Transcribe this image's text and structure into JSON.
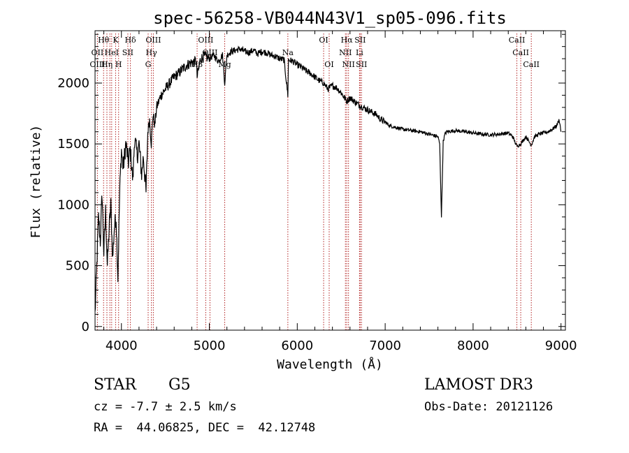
{
  "chart_data": {
    "type": "line",
    "title": "spec-56258-VB044N43V1_sp05-096.fits",
    "xlabel": "Wavelength (Å)",
    "ylabel": "Flux (relative)",
    "xlim": [
      3700,
      9050
    ],
    "ylim": [
      -30,
      2430
    ],
    "xticks": [
      4000,
      5000,
      6000,
      7000,
      8000,
      9000
    ],
    "yticks": [
      0,
      500,
      1000,
      1500,
      2000
    ],
    "grid": false,
    "line_color": "#000000",
    "marker_color": "#b22222",
    "series": [
      {
        "x": [
          3700,
          3720,
          3740,
          3760,
          3780,
          3800,
          3820,
          3840,
          3860,
          3880,
          3900,
          3920,
          3940,
          3960,
          3980,
          4000,
          4020,
          4050,
          4080,
          4100,
          4130,
          4150,
          4180,
          4200,
          4230,
          4250,
          4280,
          4300,
          4320,
          4340,
          4360,
          4380,
          4400,
          4450,
          4500,
          4550,
          4600,
          4650,
          4700,
          4750,
          4800,
          4850,
          4861,
          4900,
          4950,
          5000,
          5050,
          5100,
          5150,
          5175,
          5200,
          5250,
          5300,
          5350,
          5400,
          5450,
          5500,
          5550,
          5600,
          5650,
          5700,
          5750,
          5800,
          5850,
          5893,
          5900,
          5950,
          6000,
          6050,
          6100,
          6150,
          6200,
          6250,
          6300,
          6350,
          6400,
          6450,
          6500,
          6563,
          6600,
          6650,
          6700,
          6750,
          6800,
          6850,
          6900,
          6950,
          7000,
          7050,
          7100,
          7150,
          7200,
          7300,
          7400,
          7500,
          7550,
          7600,
          7620,
          7640,
          7660,
          7680,
          7700,
          7800,
          7900,
          8000,
          8100,
          8200,
          8300,
          8400,
          8450,
          8498,
          8542,
          8600,
          8662,
          8700,
          8750,
          8800,
          8850,
          8900,
          8950,
          8980,
          9000
        ],
        "values": [
          100,
          500,
          900,
          700,
          1100,
          600,
          950,
          500,
          800,
          1000,
          550,
          820,
          900,
          400,
          1100,
          1450,
          1300,
          1500,
          1350,
          1450,
          1200,
          1550,
          1400,
          1500,
          1250,
          1400,
          1100,
          1600,
          1700,
          1500,
          1750,
          1650,
          1800,
          1900,
          1950,
          2000,
          2050,
          2080,
          2120,
          2150,
          2170,
          2180,
          2050,
          2200,
          2220,
          2200,
          2230,
          2180,
          2230,
          2000,
          2230,
          2260,
          2270,
          2280,
          2260,
          2250,
          2270,
          2240,
          2260,
          2250,
          2230,
          2220,
          2200,
          2190,
          1900,
          2190,
          2180,
          2150,
          2130,
          2100,
          2080,
          2050,
          2020,
          2000,
          1950,
          1980,
          1960,
          1920,
          1850,
          1880,
          1850,
          1820,
          1800,
          1780,
          1760,
          1740,
          1700,
          1680,
          1650,
          1640,
          1630,
          1620,
          1610,
          1600,
          1580,
          1570,
          1560,
          1500,
          900,
          1520,
          1580,
          1600,
          1610,
          1600,
          1590,
          1580,
          1575,
          1580,
          1590,
          1560,
          1480,
          1500,
          1560,
          1490,
          1560,
          1580,
          1590,
          1600,
          1620,
          1650,
          1700,
          1600
        ]
      }
    ],
    "line_markers": [
      {
        "wavelength": 3727,
        "row1": "",
        "row2": "OII",
        "row3": "OIII"
      },
      {
        "wavelength": 3797,
        "row1": "Hθ",
        "row2": "",
        "row3": ""
      },
      {
        "wavelength": 3835,
        "row1": "",
        "row2": "",
        "row3": "Hη"
      },
      {
        "wavelength": 3869,
        "row1": "",
        "row2": "",
        "row3": ""
      },
      {
        "wavelength": 3889,
        "row1": "",
        "row2": "HeI",
        "row3": ""
      },
      {
        "wavelength": 3934,
        "row1": "K",
        "row2": "",
        "row3": ""
      },
      {
        "wavelength": 3968,
        "row1": "",
        "row2": "",
        "row3": "H"
      },
      {
        "wavelength": 4073,
        "row1": "",
        "row2": "SII",
        "row3": ""
      },
      {
        "wavelength": 4102,
        "row1": "Hδ",
        "row2": "",
        "row3": ""
      },
      {
        "wavelength": 4304,
        "row1": "",
        "row2": "",
        "row3": "G"
      },
      {
        "wavelength": 4341,
        "row1": "",
        "row2": "Hγ",
        "row3": ""
      },
      {
        "wavelength": 4363,
        "row1": "OIII",
        "row2": "",
        "row3": ""
      },
      {
        "wavelength": 4861,
        "row1": "",
        "row2": "",
        "row3": "Hβ"
      },
      {
        "wavelength": 4959,
        "row1": "OIII",
        "row2": "",
        "row3": ""
      },
      {
        "wavelength": 5007,
        "row1": "",
        "row2": "OIII",
        "row3": ""
      },
      {
        "wavelength": 5175,
        "row1": "",
        "row2": "",
        "row3": "Mg"
      },
      {
        "wavelength": 5893,
        "row1": "",
        "row2": "Na",
        "row3": ""
      },
      {
        "wavelength": 6300,
        "row1": "OI",
        "row2": "",
        "row3": ""
      },
      {
        "wavelength": 6363,
        "row1": "",
        "row2": "",
        "row3": "OI"
      },
      {
        "wavelength": 6548,
        "row1": "",
        "row2": "NII",
        "row3": ""
      },
      {
        "wavelength": 6563,
        "row1": "Hα",
        "row2": "",
        "row3": ""
      },
      {
        "wavelength": 6583,
        "row1": "",
        "row2": "",
        "row3": "NII"
      },
      {
        "wavelength": 6708,
        "row1": "",
        "row2": "Li",
        "row3": ""
      },
      {
        "wavelength": 6716,
        "row1": "SII",
        "row2": "",
        "row3": ""
      },
      {
        "wavelength": 6731,
        "row1": "",
        "row2": "",
        "row3": "SII"
      },
      {
        "wavelength": 8498,
        "row1": "CaII",
        "row2": "",
        "row3": ""
      },
      {
        "wavelength": 8542,
        "row1": "",
        "row2": "CaII",
        "row3": ""
      },
      {
        "wavelength": 8662,
        "row1": "",
        "row2": "",
        "row3": "CaII"
      }
    ]
  },
  "info": {
    "object_class": "STAR",
    "subclass": "G5",
    "survey": "LAMOST DR3",
    "redshift": "cz = -7.7 ± 2.5 km/s",
    "obs_date": "Obs-Date: 20121126",
    "coords": "RA =  44.06825, DEC =  42.12748"
  }
}
